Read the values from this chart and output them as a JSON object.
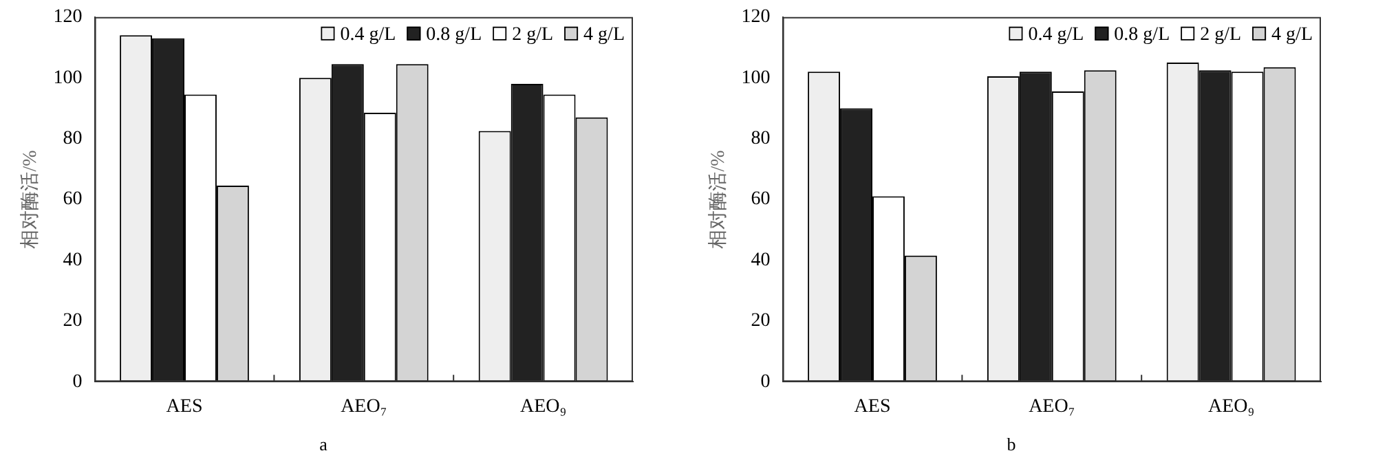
{
  "chart_data": [
    {
      "type": "bar",
      "title": "a",
      "ylabel": "相对酶活/%",
      "categories": [
        "AES",
        "AEO₇",
        "AEO₉"
      ],
      "ylim": [
        0,
        120
      ],
      "yticks": [
        0,
        20,
        40,
        60,
        80,
        100,
        120
      ],
      "grid": false,
      "legend": "top right",
      "series": [
        {
          "name": "0.4 g/L",
          "color": "#eeeeee",
          "values": [
            114,
            100,
            82.5
          ]
        },
        {
          "name": "0.8 g/L",
          "color": "#222222",
          "values": [
            113,
            104.5,
            98
          ]
        },
        {
          "name": "2 g/L",
          "color": "#ffffff",
          "values": [
            94.5,
            88.5,
            94.5
          ]
        },
        {
          "name": "4 g/L",
          "color": "#d4d4d4",
          "values": [
            64.5,
            104.5,
            87
          ]
        }
      ]
    },
    {
      "type": "bar",
      "title": "b",
      "ylabel": "相对酶活/%",
      "categories": [
        "AES",
        "AEO₇",
        "AEO₉"
      ],
      "ylim": [
        0,
        120
      ],
      "yticks": [
        0,
        20,
        40,
        60,
        80,
        100,
        120
      ],
      "grid": false,
      "legend": "top right",
      "series": [
        {
          "name": "0.4 g/L",
          "color": "#eeeeee",
          "values": [
            102,
            100.5,
            105
          ]
        },
        {
          "name": "0.8 g/L",
          "color": "#222222",
          "values": [
            90,
            102,
            102.5
          ]
        },
        {
          "name": "2 g/L",
          "color": "#ffffff",
          "values": [
            61,
            95.5,
            102
          ]
        },
        {
          "name": "4 g/L",
          "color": "#d4d4d4",
          "values": [
            41.5,
            102.5,
            103.5
          ]
        }
      ]
    }
  ]
}
